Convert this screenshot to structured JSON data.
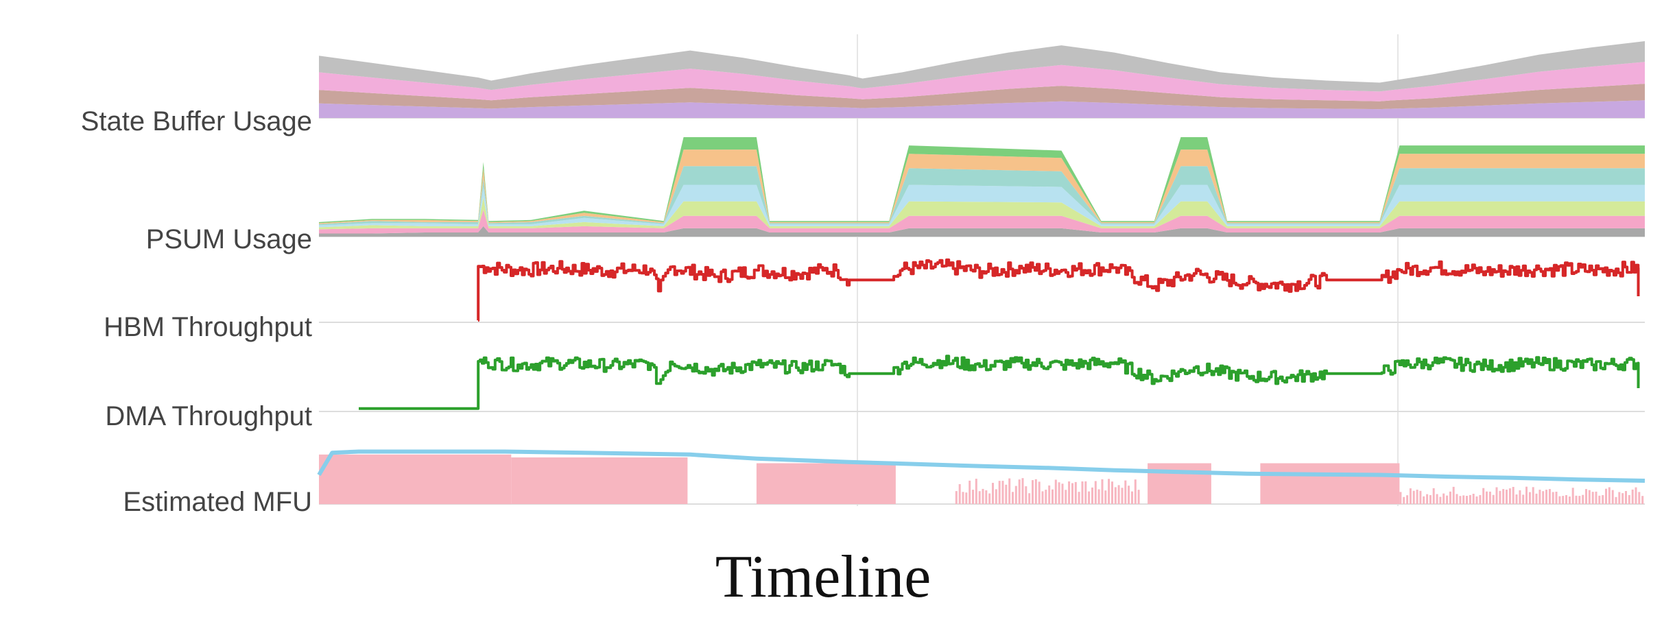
{
  "chart_data": {
    "type": "area",
    "xlabel": "Timeline",
    "x_range": [
      0,
      100
    ],
    "grid": true,
    "legend": "none",
    "tracks": [
      {
        "label": "State Buffer Usage",
        "kind": "stacked-area",
        "x": [
          0,
          4,
          8,
          12,
          13,
          16,
          20,
          24,
          28,
          32,
          36,
          40,
          41,
          44,
          48,
          52,
          56,
          60,
          64,
          68,
          72,
          76,
          80,
          81,
          84,
          88,
          92,
          96,
          100
        ],
        "series": [
          {
            "color": "#c8a8e0",
            "values": [
              1.4,
              1.25,
              1.1,
              0.95,
              0.9,
              1.05,
              1.2,
              1.35,
              1.5,
              1.35,
              1.15,
              1.0,
              0.95,
              1.05,
              1.25,
              1.45,
              1.6,
              1.45,
              1.25,
              1.05,
              0.95,
              0.9,
              0.85,
              0.9,
              1.0,
              1.2,
              1.4,
              1.55,
              1.7
            ]
          },
          {
            "color": "#c9a49c",
            "values": [
              1.3,
              1.15,
              1.0,
              0.85,
              0.8,
              0.95,
              1.1,
              1.25,
              1.4,
              1.25,
              1.05,
              0.9,
              0.85,
              0.95,
              1.15,
              1.35,
              1.5,
              1.35,
              1.15,
              0.95,
              0.85,
              0.8,
              0.75,
              0.8,
              0.9,
              1.1,
              1.3,
              1.45,
              1.6
            ]
          },
          {
            "color": "#f2aedb",
            "values": [
              1.7,
              1.5,
              1.3,
              1.1,
              1.0,
              1.2,
              1.45,
              1.65,
              1.85,
              1.65,
              1.4,
              1.15,
              1.05,
              1.25,
              1.55,
              1.8,
              2.0,
              1.8,
              1.5,
              1.25,
              1.1,
              1.0,
              0.95,
              1.0,
              1.2,
              1.45,
              1.75,
              1.95,
              2.1
            ]
          },
          {
            "color": "#c0c0c0",
            "values": [
              1.6,
              1.4,
              1.2,
              1.0,
              0.9,
              1.1,
              1.35,
              1.55,
              1.75,
              1.55,
              1.3,
              1.05,
              0.95,
              1.15,
              1.45,
              1.7,
              1.9,
              1.7,
              1.4,
              1.15,
              1.0,
              0.9,
              0.85,
              0.9,
              1.1,
              1.35,
              1.65,
              1.85,
              2.0
            ]
          }
        ]
      },
      {
        "label": "PSUM Usage",
        "kind": "stacked-area",
        "x": [
          0,
          4,
          8,
          12,
          12.4,
          12.8,
          16,
          20,
          26,
          27.5,
          28.5,
          33,
          34,
          43,
          44.5,
          56,
          59,
          63,
          65,
          67,
          68.5,
          71.5,
          73,
          80,
          81.5,
          100
        ],
        "series": [
          {
            "color": "#a8a8a8",
            "values": [
              0.15,
              0.15,
              0.2,
              0.2,
              0.5,
              0.2,
              0.2,
              0.2,
              0.2,
              0.4,
              0.4,
              0.4,
              0.2,
              0.2,
              0.4,
              0.4,
              0.2,
              0.2,
              0.4,
              0.4,
              0.2,
              0.2,
              0.2,
              0.2,
              0.4,
              0.4
            ]
          },
          {
            "color": "#f5a6c8",
            "values": [
              0.2,
              0.25,
              0.2,
              0.2,
              0.8,
              0.2,
              0.2,
              0.3,
              0.2,
              0.6,
              0.6,
              0.6,
              0.2,
              0.2,
              0.6,
              0.6,
              0.2,
              0.2,
              0.6,
              0.6,
              0.2,
              0.2,
              0.2,
              0.2,
              0.6,
              0.6
            ]
          },
          {
            "color": "#d4ea9a",
            "values": [
              0.1,
              0.15,
              0.1,
              0.1,
              0.6,
              0.1,
              0.1,
              0.2,
              0.1,
              0.7,
              0.7,
              0.7,
              0.1,
              0.1,
              0.7,
              0.65,
              0.1,
              0.1,
              0.7,
              0.7,
              0.1,
              0.1,
              0.1,
              0.1,
              0.7,
              0.7
            ]
          },
          {
            "color": "#b8e2f0",
            "values": [
              0.1,
              0.1,
              0.15,
              0.1,
              0.5,
              0.1,
              0.1,
              0.2,
              0.1,
              0.8,
              0.8,
              0.8,
              0.1,
              0.1,
              0.8,
              0.75,
              0.1,
              0.1,
              0.8,
              0.8,
              0.1,
              0.1,
              0.1,
              0.1,
              0.8,
              0.8
            ]
          },
          {
            "color": "#9fd8d0",
            "values": [
              0.05,
              0.1,
              0.05,
              0.1,
              0.4,
              0.05,
              0.1,
              0.1,
              0.05,
              0.9,
              0.9,
              0.9,
              0.05,
              0.05,
              0.8,
              0.75,
              0.05,
              0.05,
              0.9,
              0.9,
              0.05,
              0.05,
              0.05,
              0.05,
              0.8,
              0.8
            ]
          },
          {
            "color": "#f6c28a",
            "values": [
              0.05,
              0.05,
              0.1,
              0.05,
              0.5,
              0.05,
              0.05,
              0.15,
              0.05,
              0.8,
              0.8,
              0.8,
              0.05,
              0.05,
              0.7,
              0.65,
              0.05,
              0.05,
              0.8,
              0.8,
              0.05,
              0.05,
              0.05,
              0.05,
              0.7,
              0.7
            ]
          },
          {
            "color": "#7ccf7c",
            "values": [
              0.05,
              0.05,
              0.05,
              0.05,
              0.3,
              0.05,
              0.05,
              0.1,
              0.05,
              0.6,
              0.6,
              0.6,
              0.05,
              0.05,
              0.4,
              0.35,
              0.05,
              0.05,
              0.6,
              0.6,
              0.05,
              0.05,
              0.05,
              0.05,
              0.4,
              0.4
            ]
          }
        ]
      },
      {
        "label": "HBM Throughput",
        "kind": "line",
        "color": "#d62728",
        "x": [
          12,
          12.01,
          12.6,
          15,
          18,
          22,
          25,
          25.6,
          26.5,
          30,
          33,
          36,
          38,
          39,
          40,
          43.2,
          44,
          47,
          50,
          53,
          56,
          60,
          63,
          66,
          70,
          73,
          76,
          80,
          81.5,
          84,
          88,
          92,
          96,
          99.5,
          99.51
        ],
        "values": [
          3,
          86,
          84,
          80,
          83,
          79,
          82,
          48,
          85,
          70,
          80,
          75,
          80,
          80,
          65,
          65,
          82,
          86,
          78,
          83,
          80,
          84,
          55,
          75,
          60,
          58,
          65,
          65,
          80,
          84,
          78,
          82,
          80,
          83,
          40
        ]
      },
      {
        "label": "DMA Throughput",
        "kind": "line",
        "color": "#2ca02c",
        "x": [
          3,
          12,
          12.01,
          12.6,
          15,
          18,
          22,
          25,
          25.6,
          26.5,
          30,
          33,
          36,
          38,
          39,
          40,
          43.2,
          44,
          47,
          50,
          53,
          56,
          60,
          63,
          66,
          70,
          73,
          76,
          80,
          81.5,
          84,
          88,
          92,
          96,
          99.5,
          99.51
        ],
        "values": [
          5,
          5,
          86,
          84,
          80,
          83,
          79,
          82,
          48,
          85,
          70,
          80,
          75,
          80,
          80,
          65,
          65,
          82,
          86,
          78,
          83,
          80,
          84,
          55,
          75,
          60,
          58,
          65,
          65,
          80,
          84,
          78,
          82,
          80,
          83,
          40
        ]
      },
      {
        "label": "Estimated MFU",
        "kind": "bars+line",
        "bar_color": "#f7b6c0",
        "line_color": "#87ceeb",
        "busy_intervals": [
          [
            0,
            14.5
          ],
          [
            14.5,
            27.8
          ],
          [
            33,
            43.5
          ],
          [
            48,
            62
          ],
          [
            62.5,
            67.3
          ],
          [
            71,
            81.5
          ],
          [
            81.5,
            100
          ]
        ],
        "busy_levels": [
          0.85,
          0.8,
          0.7,
          0.45,
          0.7,
          0.7,
          0.3
        ],
        "line_x": [
          0,
          1,
          3,
          10,
          14,
          20,
          28,
          30,
          33,
          40,
          43,
          50,
          55,
          60,
          65,
          70,
          80,
          85,
          90,
          95,
          100
        ],
        "line_y": [
          0.5,
          0.88,
          0.9,
          0.9,
          0.9,
          0.88,
          0.85,
          0.82,
          0.78,
          0.72,
          0.7,
          0.65,
          0.62,
          0.58,
          0.55,
          0.52,
          0.5,
          0.47,
          0.45,
          0.42,
          0.4
        ]
      }
    ]
  }
}
